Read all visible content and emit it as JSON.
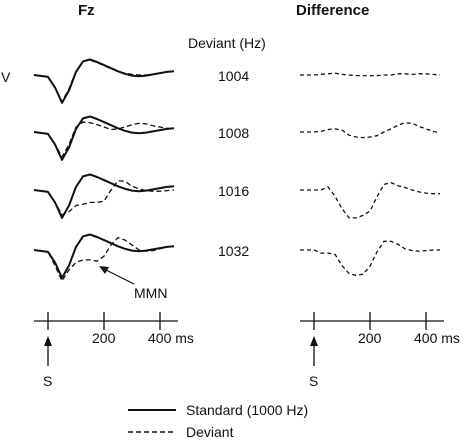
{
  "chart_data": {
    "type": "line",
    "panel_titles": [
      "Fz",
      "Difference"
    ],
    "deviant_header": "Deviant (Hz)",
    "y_axis_label": "V",
    "x_unit": "ms",
    "x_ticks": [
      "200",
      "400 ms"
    ],
    "tick_values": [
      0,
      200,
      400
    ],
    "stimulus_label": "S",
    "annotation": "MMN",
    "legend": {
      "standard": "Standard (1000 Hz)",
      "deviant": "Deviant"
    },
    "x": [
      -50,
      0,
      25,
      50,
      75,
      100,
      125,
      150,
      175,
      200,
      225,
      250,
      275,
      300,
      325,
      350,
      375,
      400,
      425,
      450
    ],
    "standard": [
      0,
      -0.3,
      -2,
      -4.5,
      -2.5,
      0.5,
      2.2,
      2.5,
      2.1,
      1.6,
      1.1,
      0.6,
      0.2,
      -0.1,
      -0.2,
      -0.1,
      0.1,
      0.3,
      0.5,
      0.6
    ],
    "conditions": [
      {
        "deviant_hz": "1004",
        "deviant": [
          0,
          -0.3,
          -2,
          -4.3,
          -2.2,
          0.6,
          2.2,
          2.4,
          2.0,
          1.5,
          1.0,
          0.6,
          0.3,
          0.1,
          0.0,
          0.0,
          0.1,
          0.3,
          0.5,
          0.6
        ],
        "difference": [
          0,
          0,
          0.1,
          0.2,
          0.3,
          0.1,
          0,
          -0.1,
          -0.1,
          -0.1,
          -0.1,
          0,
          0,
          0.2,
          0.2,
          0.1,
          0.2,
          0.2,
          0.1,
          0
        ]
      },
      {
        "deviant_hz": "1008",
        "deviant": [
          0,
          -0.3,
          -2,
          -4.0,
          -2.0,
          0.8,
          1.6,
          1.5,
          1.2,
          0.8,
          0.4,
          0.5,
          0.8,
          1.2,
          1.4,
          1.3,
          1.0,
          0.8,
          0.6,
          0.5
        ],
        "difference": [
          0,
          0,
          0.1,
          0.4,
          0.5,
          0.3,
          -0.5,
          -0.8,
          -0.9,
          -0.8,
          -0.6,
          0,
          0.5,
          1.1,
          1.5,
          1.4,
          0.9,
          0.5,
          0.1,
          -0.1
        ]
      },
      {
        "deviant_hz": "1016",
        "deviant": [
          0,
          -0.3,
          -2,
          -4.0,
          -3.5,
          -2.5,
          -2.3,
          -2.0,
          -2.0,
          -1.8,
          0.0,
          1.5,
          1.4,
          0.6,
          0.2,
          -0.1,
          -0.2,
          -0.2,
          -0.1,
          0.0
        ],
        "difference": [
          0,
          0,
          0,
          0.5,
          -1.0,
          -3.0,
          -4.5,
          -4.5,
          -4.1,
          -3.4,
          -1.1,
          0.9,
          1.2,
          0.7,
          0.4,
          0.0,
          -0.3,
          -0.5,
          -0.6,
          -0.6
        ]
      },
      {
        "deviant_hz": "1032",
        "deviant": [
          0,
          -0.3,
          -2.5,
          -5.0,
          -3.2,
          -2.0,
          -1.6,
          -1.6,
          -1.8,
          -1.0,
          0.8,
          2.0,
          1.6,
          0.8,
          0.0,
          -0.2,
          -0.1,
          0.2,
          0.5,
          0.6
        ],
        "difference": [
          0,
          0,
          -0.5,
          -0.5,
          -0.7,
          -2.5,
          -3.8,
          -4.1,
          -3.9,
          -2.6,
          -0.3,
          1.4,
          1.4,
          0.9,
          0.2,
          -0.1,
          -0.2,
          -0.1,
          0.0,
          0.0
        ]
      }
    ]
  }
}
